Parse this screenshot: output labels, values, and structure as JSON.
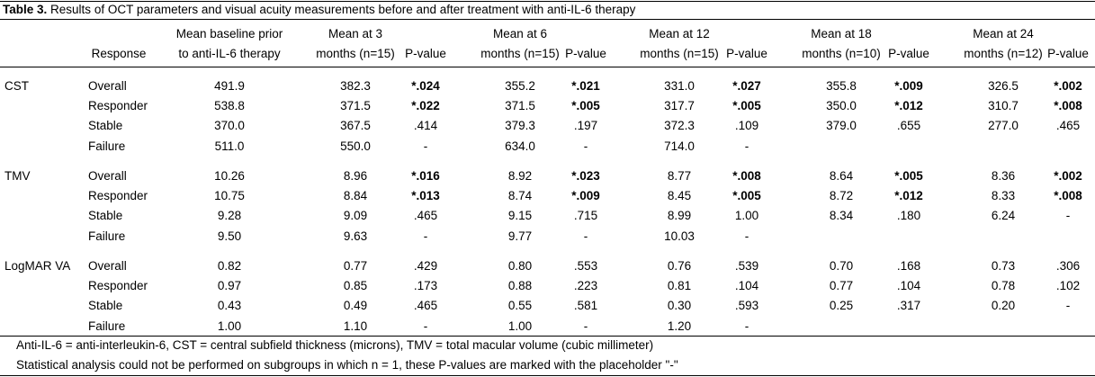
{
  "table": {
    "label": "Table 3.",
    "title": "Results of OCT parameters and visual acuity measurements before and after treatment with anti-IL-6 therapy",
    "headers": [
      {
        "lines": [
          "Response"
        ]
      },
      {
        "lines": [
          "Mean baseline prior",
          "to anti-IL-6 therapy"
        ]
      },
      {
        "lines": [
          "Mean at 3",
          "months (n=15)"
        ]
      },
      {
        "lines": [
          "P-value"
        ]
      },
      {
        "lines": [
          "Mean at 6",
          "months (n=15)"
        ]
      },
      {
        "lines": [
          "P-value"
        ]
      },
      {
        "lines": [
          "Mean at 12",
          "months (n=15)"
        ]
      },
      {
        "lines": [
          "P-value"
        ]
      },
      {
        "lines": [
          "Mean at 18",
          "months (n=10)"
        ]
      },
      {
        "lines": [
          "P-value"
        ]
      },
      {
        "lines": [
          "Mean at 24",
          "months (n=12)"
        ]
      },
      {
        "lines": [
          "P-value"
        ]
      }
    ],
    "groups": [
      {
        "name": "CST",
        "rows": [
          {
            "response": "Overall",
            "cells": [
              "491.9",
              "382.3",
              "*.024",
              "355.2",
              "*.021",
              "331.0",
              "*.027",
              "355.8",
              "*.009",
              "326.5",
              "*.002"
            ]
          },
          {
            "response": "Responder",
            "cells": [
              "538.8",
              "371.5",
              "*.022",
              "371.5",
              "*.005",
              "317.7",
              "*.005",
              "350.0",
              "*.012",
              "310.7",
              "*.008"
            ]
          },
          {
            "response": "Stable",
            "cells": [
              "370.0",
              "367.5",
              ".414",
              "379.3",
              ".197",
              "372.3",
              ".109",
              "379.0",
              ".655",
              "277.0",
              ".465"
            ]
          },
          {
            "response": "Failure",
            "cells": [
              "511.0",
              "550.0",
              "-",
              "634.0",
              "-",
              "714.0",
              "-"
            ]
          }
        ]
      },
      {
        "name": "TMV",
        "rows": [
          {
            "response": "Overall",
            "cells": [
              "10.26",
              "8.96",
              "*.016",
              "8.92",
              "*.023",
              "8.77",
              "*.008",
              "8.64",
              "*.005",
              "8.36",
              "*.002"
            ]
          },
          {
            "response": "Responder",
            "cells": [
              "10.75",
              "8.84",
              "*.013",
              "8.74",
              "*.009",
              "8.45",
              "*.005",
              "8.72",
              "*.012",
              "8.33",
              "*.008"
            ]
          },
          {
            "response": "Stable",
            "cells": [
              "9.28",
              "9.09",
              ".465",
              "9.15",
              ".715",
              "8.99",
              "1.00",
              "8.34",
              ".180",
              "6.24",
              "-"
            ]
          },
          {
            "response": "Failure",
            "cells": [
              "9.50",
              "9.63",
              "-",
              "9.77",
              "-",
              "10.03",
              "-"
            ]
          }
        ]
      },
      {
        "name": "LogMAR VA",
        "rows": [
          {
            "response": "Overall",
            "cells": [
              "0.82",
              "0.77",
              ".429",
              "0.80",
              ".553",
              "0.76",
              ".539",
              "0.70",
              ".168",
              "0.73",
              ".306"
            ]
          },
          {
            "response": "Responder",
            "cells": [
              "0.97",
              "0.85",
              ".173",
              "0.88",
              ".223",
              "0.81",
              ".104",
              "0.77",
              ".104",
              "0.78",
              ".102"
            ]
          },
          {
            "response": "Stable",
            "cells": [
              "0.43",
              "0.49",
              ".465",
              "0.55",
              ".581",
              "0.30",
              ".593",
              "0.25",
              ".317",
              "0.20",
              "-"
            ]
          },
          {
            "response": "Failure",
            "cells": [
              "1.00",
              "1.10",
              "-",
              "1.00",
              "-",
              "1.20",
              "-"
            ]
          }
        ]
      }
    ],
    "footnotes": [
      "Anti-IL-6 = anti-interleukin-6, CST = central subfield thickness (microns), TMV = total macular volume (cubic millimeter)",
      "Statistical analysis could not be performed on subgroups in which n = 1, these P-values are marked with the placeholder \"-\""
    ]
  }
}
